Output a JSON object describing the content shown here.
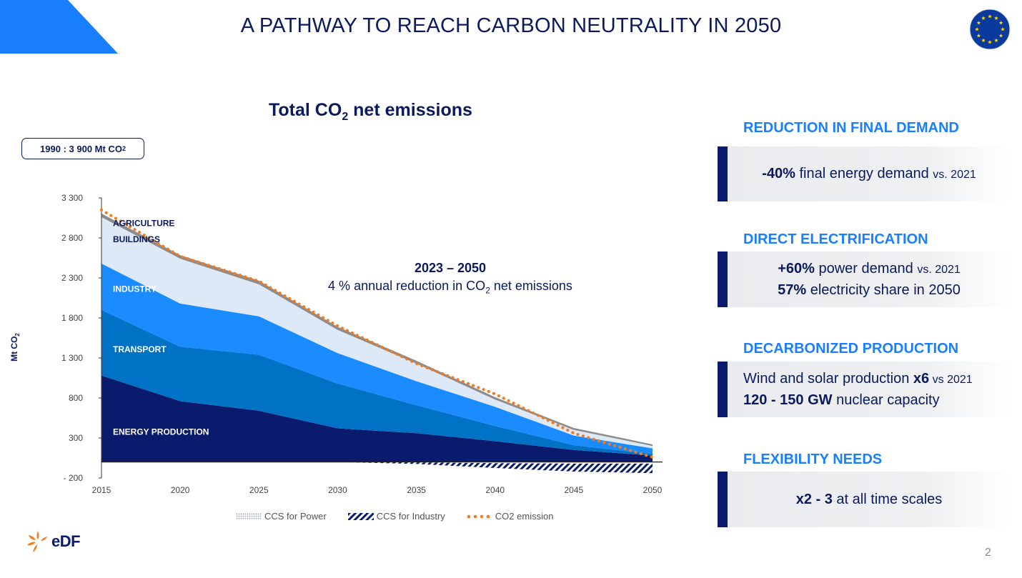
{
  "header": {
    "title": "A PATHWAY TO REACH CARBON NEUTRALITY IN 2050",
    "accent_color": "#1a7fff",
    "flag_icon": "eu-flag-icon"
  },
  "chart_title": {
    "main": "Total CO",
    "sub": "2",
    "rest": " net emissions"
  },
  "badge": {
    "main": "1990 : 3 900 Mt CO",
    "sub": "2"
  },
  "annotation": {
    "period": "2023 – 2050",
    "desc_main": "4 % annual reduction in CO",
    "desc_sub": "2",
    "desc_rest": " net emissions"
  },
  "chart_data": {
    "type": "area",
    "stacked": true,
    "x": [
      2015,
      2020,
      2025,
      2030,
      2035,
      2040,
      2045,
      2050
    ],
    "ylabel_main": "Mt CO",
    "ylabel_sub": "2",
    "ylim": [
      -200,
      3300
    ],
    "yticks": [
      -200,
      300,
      800,
      1300,
      1800,
      2300,
      2800,
      3300
    ],
    "ytick_labels": [
      "- 200",
      "300",
      "800",
      "1 300",
      "1 800",
      "2 300",
      "2 800",
      "3 300"
    ],
    "grid": false,
    "series": [
      {
        "name": "ENERGY PRODUCTION",
        "color": "#0a1a6c",
        "values": [
          1080,
          760,
          640,
          420,
          360,
          260,
          150,
          80
        ]
      },
      {
        "name": "TRANSPORT",
        "color": "#0072c6",
        "values": [
          820,
          680,
          700,
          560,
          350,
          190,
          60,
          20
        ]
      },
      {
        "name": "INDUSTRY",
        "color": "#1a8cff",
        "values": [
          580,
          540,
          480,
          380,
          300,
          240,
          120,
          70
        ]
      },
      {
        "name": "BUILDINGS",
        "color": "#dde9f7",
        "values": [
          580,
          560,
          400,
          290,
          220,
          90,
          70,
          30
        ]
      },
      {
        "name": "AGRICULTURE",
        "color": "#8c8c8c",
        "values": [
          45,
          45,
          45,
          40,
          35,
          30,
          25,
          20
        ]
      }
    ],
    "ccs_power": [
      0,
      0,
      0,
      0,
      -5,
      -15,
      -20,
      -20
    ],
    "ccs_industry": [
      0,
      0,
      0,
      0,
      -20,
      -60,
      -100,
      -120
    ],
    "co2_emission": [
      3150,
      2570,
      2260,
      1700,
      1230,
      850,
      360,
      60
    ],
    "legend": [
      {
        "label": "CCS for Power",
        "icon": "hatch-dots-icon"
      },
      {
        "label": "CCS for Industry",
        "icon": "hatch-diagonal-icon"
      },
      {
        "label": "CO2 emission",
        "icon": "dotted-orange-line-icon",
        "color": "#f47a20"
      }
    ],
    "legend_position": "bottom"
  },
  "sections": [
    {
      "head": "REDUCTION IN FINAL DEMAND",
      "lines": [
        {
          "b": "-40%",
          "t": " final energy demand ",
          "s": "vs. 2021"
        }
      ]
    },
    {
      "head": "DIRECT ELECTRIFICATION",
      "lines": [
        {
          "b": "+60%",
          "t": " power demand ",
          "s": "vs. 2021"
        },
        {
          "b": "57%",
          "t": " electricity share in 2050",
          "s": ""
        }
      ]
    },
    {
      "head": "DECARBONIZED PRODUCTION",
      "lines": [
        {
          "t": "Wind and solar production ",
          "b": "x6",
          "s": " vs 2021"
        },
        {
          "b": "120 - 150 GW",
          "t": " nuclear capacity"
        }
      ]
    },
    {
      "head": "FLEXIBILITY NEEDS",
      "lines": [
        {
          "b": "x2 - 3",
          "t": " at all time scales"
        }
      ]
    }
  ],
  "footer": {
    "logo_text": "eDF",
    "page_number": "2"
  }
}
